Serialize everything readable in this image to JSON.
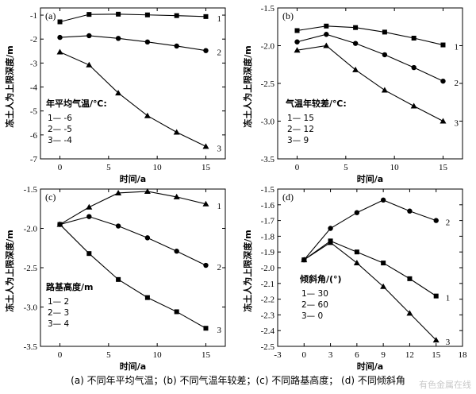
{
  "colors": {
    "ink": "#000000",
    "watermark": "#c9c9c9"
  },
  "chart_data": [
    {
      "type": "line",
      "panel_label": "(a)",
      "xlabel": "时间/a",
      "ylabel": "冻土人为上限深度/m",
      "xlim": [
        -2,
        17
      ],
      "ylim": [
        -7,
        -0.7
      ],
      "xticks": [
        0,
        5,
        10,
        15
      ],
      "yticks": [
        -7,
        -6,
        -5,
        -4,
        -3,
        -2,
        -1
      ],
      "legend_title": "年平均气温/℃:",
      "legend_items": [
        "1— -6",
        "2— -5",
        "3— -4"
      ],
      "series": [
        {
          "name": "1",
          "marker": "square",
          "x": [
            0,
            3,
            6,
            9,
            12,
            15
          ],
          "y": [
            -1.28,
            -0.97,
            -0.96,
            -0.99,
            -1.02,
            -1.06
          ]
        },
        {
          "name": "2",
          "marker": "circle",
          "x": [
            0,
            3,
            6,
            9,
            12,
            15
          ],
          "y": [
            -1.93,
            -1.86,
            -1.97,
            -2.12,
            -2.29,
            -2.48
          ]
        },
        {
          "name": "3",
          "marker": "triangle",
          "x": [
            0,
            3,
            6,
            9,
            12,
            15
          ],
          "y": [
            -2.54,
            -3.08,
            -4.25,
            -5.2,
            -5.89,
            -6.48
          ]
        }
      ]
    },
    {
      "type": "line",
      "panel_label": "(b)",
      "xlabel": "时间/a",
      "ylabel": "冻土人为上限深度/m",
      "xlim": [
        -2,
        17
      ],
      "ylim": [
        -3.5,
        -1.5
      ],
      "xticks": [
        0,
        5,
        10,
        15
      ],
      "yticks": [
        -3.5,
        -3.0,
        -2.5,
        -2.0,
        -1.5
      ],
      "legend_title": "气温年较差/℃:",
      "legend_items": [
        "1— 15",
        "2— 12",
        "3— 9"
      ],
      "series": [
        {
          "name": "1",
          "marker": "square",
          "x": [
            0,
            3,
            6,
            9,
            12,
            15
          ],
          "y": [
            -1.8,
            -1.74,
            -1.76,
            -1.82,
            -1.9,
            -1.99
          ]
        },
        {
          "name": "2",
          "marker": "circle",
          "x": [
            0,
            3,
            6,
            9,
            12,
            15
          ],
          "y": [
            -1.95,
            -1.85,
            -1.97,
            -2.12,
            -2.29,
            -2.47
          ]
        },
        {
          "name": "3",
          "marker": "triangle",
          "x": [
            0,
            3,
            6,
            9,
            12,
            15
          ],
          "y": [
            -2.06,
            -2.0,
            -2.32,
            -2.59,
            -2.8,
            -3.0
          ]
        }
      ]
    },
    {
      "type": "line",
      "panel_label": "(c)",
      "xlabel": "时间/a",
      "ylabel": "冻土人为上限深度/m",
      "xlim": [
        -2,
        17
      ],
      "ylim": [
        -3.5,
        -1.5
      ],
      "xticks": [
        0,
        5,
        10,
        15
      ],
      "yticks": [
        -3.5,
        -3.0,
        -2.5,
        -2.0,
        -1.5
      ],
      "legend_title": "路基高度/m",
      "legend_items": [
        "1— 2",
        "2— 3",
        "3— 4"
      ],
      "series": [
        {
          "name": "1",
          "marker": "triangle",
          "x": [
            0,
            3,
            6,
            9,
            12,
            15
          ],
          "y": [
            -1.95,
            -1.73,
            -1.55,
            -1.53,
            -1.6,
            -1.69
          ]
        },
        {
          "name": "2",
          "marker": "circle",
          "x": [
            0,
            3,
            6,
            9,
            12,
            15
          ],
          "y": [
            -1.95,
            -1.85,
            -1.97,
            -2.12,
            -2.29,
            -2.47
          ]
        },
        {
          "name": "3",
          "marker": "square",
          "x": [
            0,
            3,
            6,
            9,
            12,
            15
          ],
          "y": [
            -1.95,
            -2.32,
            -2.65,
            -2.88,
            -3.06,
            -3.27
          ]
        }
      ]
    },
    {
      "type": "line",
      "panel_label": "(d)",
      "xlabel": "时间/a",
      "ylabel": "冻土人为上限深度/m",
      "xlim": [
        -3,
        18
      ],
      "ylim": [
        -2.5,
        -1.5
      ],
      "xticks": [
        -3,
        0,
        3,
        6,
        9,
        12,
        15,
        18
      ],
      "yticks": [
        -2.5,
        -2.4,
        -2.3,
        -2.2,
        -2.1,
        -2.0,
        -1.9,
        -1.8,
        -1.7,
        -1.6,
        -1.5
      ],
      "legend_title": "倾斜角/(°)",
      "legend_items": [
        "1— 30",
        "2— 60",
        "3— 0"
      ],
      "series": [
        {
          "name": "2",
          "marker": "circle",
          "x": [
            0,
            3,
            6,
            9,
            12,
            15
          ],
          "y": [
            -1.95,
            -1.75,
            -1.65,
            -1.57,
            -1.64,
            -1.7
          ]
        },
        {
          "name": "1",
          "marker": "square",
          "x": [
            0,
            3,
            6,
            9,
            12,
            15
          ],
          "y": [
            -1.95,
            -1.83,
            -1.9,
            -1.97,
            -2.07,
            -2.18
          ]
        },
        {
          "name": "3",
          "marker": "triangle",
          "x": [
            0,
            3,
            6,
            9,
            12,
            15
          ],
          "y": [
            -1.95,
            -1.84,
            -1.97,
            -2.12,
            -2.29,
            -2.46
          ]
        }
      ]
    }
  ],
  "caption": "(a)  不同年平均气温；(b)  不同气温年较差；(c)  不同路基高度；  (d)  不同倾斜角",
  "watermark": "有色金属在线"
}
